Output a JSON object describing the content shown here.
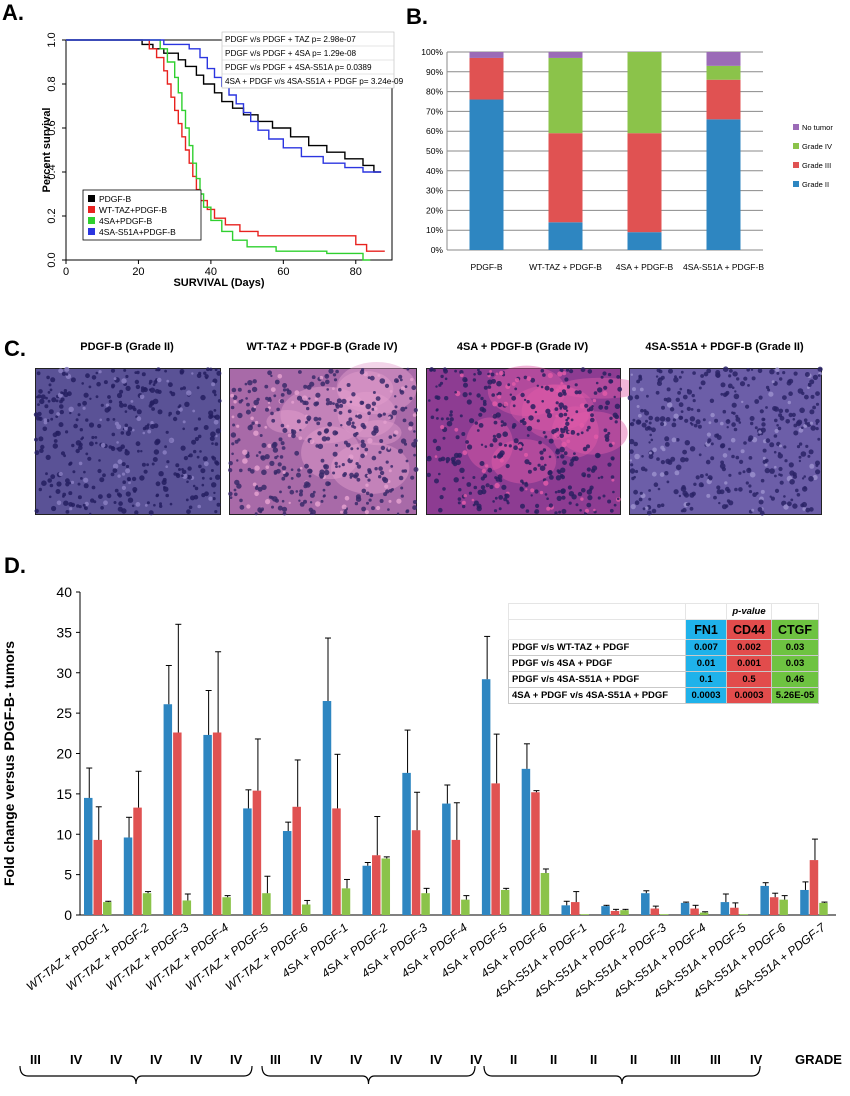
{
  "panels": {
    "a": "A.",
    "b": "B.",
    "c": "C.",
    "d": "D."
  },
  "panel_a": {
    "chart_data": {
      "type": "line",
      "xlabel": "SURVIVAL (Days)",
      "ylabel": "Percent survival",
      "xlim": [
        0,
        90
      ],
      "ylim": [
        0,
        1.0
      ],
      "xticks": [
        0,
        20,
        40,
        60,
        80
      ],
      "yticks": [
        0.0,
        0.2,
        0.4,
        0.6,
        0.8,
        1.0
      ],
      "legend_placement": "lower-left",
      "series": [
        {
          "name": "PDGF-B",
          "color": "#000000",
          "points": [
            [
              0,
              1.0
            ],
            [
              21,
              1.0
            ],
            [
              21,
              0.98
            ],
            [
              24,
              0.98
            ],
            [
              24,
              0.96
            ],
            [
              27,
              0.96
            ],
            [
              27,
              0.94
            ],
            [
              31,
              0.94
            ],
            [
              31,
              0.91
            ],
            [
              33,
              0.91
            ],
            [
              33,
              0.88
            ],
            [
              36,
              0.88
            ],
            [
              36,
              0.84
            ],
            [
              38,
              0.84
            ],
            [
              38,
              0.8
            ],
            [
              41,
              0.8
            ],
            [
              41,
              0.76
            ],
            [
              43,
              0.76
            ],
            [
              43,
              0.72
            ],
            [
              46,
              0.72
            ],
            [
              46,
              0.69
            ],
            [
              49,
              0.69
            ],
            [
              49,
              0.66
            ],
            [
              53,
              0.66
            ],
            [
              53,
              0.63
            ],
            [
              57,
              0.63
            ],
            [
              57,
              0.6
            ],
            [
              62,
              0.6
            ],
            [
              62,
              0.56
            ],
            [
              67,
              0.56
            ],
            [
              67,
              0.52
            ],
            [
              72,
              0.52
            ],
            [
              72,
              0.49
            ],
            [
              77,
              0.49
            ],
            [
              77,
              0.46
            ],
            [
              82,
              0.46
            ],
            [
              82,
              0.43
            ],
            [
              85,
              0.43
            ],
            [
              85,
              0.4
            ],
            [
              87,
              0.4
            ]
          ]
        },
        {
          "name": "WT-TAZ+PDGF-B",
          "color": "#e8221f",
          "points": [
            [
              0,
              1.0
            ],
            [
              23,
              1.0
            ],
            [
              23,
              0.96
            ],
            [
              25,
              0.96
            ],
            [
              25,
              0.92
            ],
            [
              27,
              0.92
            ],
            [
              27,
              0.86
            ],
            [
              28,
              0.86
            ],
            [
              28,
              0.8
            ],
            [
              29,
              0.8
            ],
            [
              29,
              0.74
            ],
            [
              30,
              0.74
            ],
            [
              30,
              0.68
            ],
            [
              31,
              0.68
            ],
            [
              31,
              0.62
            ],
            [
              32,
              0.62
            ],
            [
              32,
              0.56
            ],
            [
              33,
              0.56
            ],
            [
              33,
              0.5
            ],
            [
              34,
              0.5
            ],
            [
              34,
              0.44
            ],
            [
              35,
              0.44
            ],
            [
              35,
              0.38
            ],
            [
              36,
              0.38
            ],
            [
              36,
              0.32
            ],
            [
              37,
              0.32
            ],
            [
              37,
              0.27
            ],
            [
              39,
              0.27
            ],
            [
              39,
              0.23
            ],
            [
              41,
              0.23
            ],
            [
              41,
              0.19
            ],
            [
              44,
              0.19
            ],
            [
              44,
              0.16
            ],
            [
              48,
              0.16
            ],
            [
              48,
              0.13
            ],
            [
              53,
              0.13
            ],
            [
              53,
              0.11
            ],
            [
              80,
              0.11
            ],
            [
              80,
              0.07
            ],
            [
              83,
              0.07
            ],
            [
              83,
              0.04
            ],
            [
              88,
              0.04
            ]
          ]
        },
        {
          "name": "4SA+PDGF-B",
          "color": "#2fd02f",
          "points": [
            [
              0,
              1.0
            ],
            [
              26,
              1.0
            ],
            [
              26,
              0.96
            ],
            [
              28,
              0.96
            ],
            [
              28,
              0.9
            ],
            [
              30,
              0.9
            ],
            [
              30,
              0.83
            ],
            [
              31,
              0.83
            ],
            [
              31,
              0.76
            ],
            [
              32,
              0.76
            ],
            [
              32,
              0.68
            ],
            [
              33,
              0.68
            ],
            [
              33,
              0.6
            ],
            [
              34,
              0.6
            ],
            [
              34,
              0.52
            ],
            [
              35,
              0.52
            ],
            [
              35,
              0.44
            ],
            [
              36,
              0.44
            ],
            [
              36,
              0.37
            ],
            [
              37,
              0.37
            ],
            [
              37,
              0.3
            ],
            [
              38,
              0.3
            ],
            [
              38,
              0.24
            ],
            [
              40,
              0.24
            ],
            [
              40,
              0.18
            ],
            [
              43,
              0.18
            ],
            [
              43,
              0.13
            ],
            [
              46,
              0.13
            ],
            [
              46,
              0.09
            ],
            [
              50,
              0.09
            ],
            [
              50,
              0.06
            ],
            [
              58,
              0.06
            ],
            [
              58,
              0.04
            ],
            [
              72,
              0.04
            ],
            [
              72,
              0.03
            ],
            [
              82,
              0.03
            ],
            [
              82,
              0.0
            ],
            [
              84,
              0.0
            ]
          ]
        },
        {
          "name": "4SA-S51A+PDGF-B",
          "color": "#2b35e0",
          "points": [
            [
              0,
              1.0
            ],
            [
              27,
              1.0
            ],
            [
              27,
              0.98
            ],
            [
              34,
              0.98
            ],
            [
              34,
              0.96
            ],
            [
              37,
              0.96
            ],
            [
              37,
              0.92
            ],
            [
              39,
              0.92
            ],
            [
              39,
              0.87
            ],
            [
              41,
              0.87
            ],
            [
              41,
              0.83
            ],
            [
              43,
              0.83
            ],
            [
              43,
              0.79
            ],
            [
              45,
              0.79
            ],
            [
              45,
              0.75
            ],
            [
              47,
              0.75
            ],
            [
              47,
              0.71
            ],
            [
              49,
              0.71
            ],
            [
              49,
              0.67
            ],
            [
              51,
              0.67
            ],
            [
              51,
              0.63
            ],
            [
              53,
              0.63
            ],
            [
              53,
              0.59
            ],
            [
              56,
              0.59
            ],
            [
              56,
              0.55
            ],
            [
              60,
              0.55
            ],
            [
              60,
              0.51
            ],
            [
              65,
              0.51
            ],
            [
              65,
              0.47
            ],
            [
              71,
              0.47
            ],
            [
              71,
              0.44
            ],
            [
              77,
              0.44
            ],
            [
              77,
              0.42
            ],
            [
              82,
              0.42
            ],
            [
              82,
              0.4
            ],
            [
              87,
              0.4
            ]
          ]
        }
      ],
      "annotations": [
        "PDGF v/s PDGF + TAZ  p= 2.98e-07",
        "PDGF v/s PDGF + 4SA  p= 1.29e-08",
        "PDGF v/s PDGF + 4SA-S51A  p= 0.0389",
        "4SA + PDGF v/s 4SA-S51A + PDGF p= 3.24e-09"
      ]
    }
  },
  "panel_b": {
    "chart_data": {
      "type": "bar",
      "stacked": true,
      "categories": [
        "PDGF-B",
        "WT-TAZ + PDGF-B",
        "4SA + PDGF-B",
        "4SA-S51A + PDGF-B"
      ],
      "ylim": [
        0,
        100
      ],
      "yticks": [
        "0%",
        "10%",
        "20%",
        "30%",
        "40%",
        "50%",
        "60%",
        "70%",
        "80%",
        "90%",
        "100%"
      ],
      "legend_placement": "right",
      "series": [
        {
          "name": "Grade II",
          "color": "#2e86c1",
          "values": [
            76,
            14,
            9,
            66
          ]
        },
        {
          "name": "Grade III",
          "color": "#e05252",
          "values": [
            21,
            45,
            50,
            20
          ]
        },
        {
          "name": "Grade IV",
          "color": "#8bc34a",
          "values": [
            0,
            38,
            41,
            7
          ]
        },
        {
          "name": "No tumor",
          "color": "#9b6bb7",
          "values": [
            3,
            3,
            0,
            7
          ]
        }
      ],
      "legend_order": [
        "No tumor",
        "Grade IV",
        "Grade III",
        "Grade II"
      ]
    }
  },
  "panel_c": {
    "images": [
      {
        "title": "PDGF-B (Grade II)",
        "bg": "#5a5296",
        "cell": "#241f60",
        "accent": "#8a7fc2"
      },
      {
        "title": "WT-TAZ + PDGF-B (Grade IV)",
        "bg": "#a86aa8",
        "cell": "#3a2a6a",
        "accent": "#e4a0cf"
      },
      {
        "title": "4SA + PDGF-B (Grade IV)",
        "bg": "#8d3c92",
        "cell": "#2a2060",
        "accent": "#e05aa8"
      },
      {
        "title": "4SA-S51A + PDGF-B (Grade II)",
        "bg": "#6c5ea8",
        "cell": "#2a2366",
        "accent": "#9a8fcc"
      }
    ]
  },
  "panel_d": {
    "chart_data": {
      "type": "bar",
      "ylabel": "Fold change versus PDGF-B- tumors",
      "ylim": [
        0,
        40
      ],
      "yticks": [
        0,
        5,
        10,
        15,
        20,
        25,
        30,
        35,
        40
      ],
      "categories": [
        "WT-TAZ + PDGF-1",
        "WT-TAZ + PDGF-2",
        "WT-TAZ + PDGF-3",
        "WT-TAZ + PDGF-4",
        "WT-TAZ + PDGF-5",
        "WT-TAZ + PDGF-6",
        "4SA + PDGF-1",
        "4SA + PDGF-2",
        "4SA + PDGF-3",
        "4SA + PDGF-4",
        "4SA + PDGF-5",
        "4SA + PDGF-6",
        "4SA-S51A + PDGF-1",
        "4SA-S51A + PDGF-2",
        "4SA-S51A + PDGF-3",
        "4SA-S51A + PDGF-4",
        "4SA-S51A + PDGF-5",
        "4SA-S51A + PDGF-6",
        "4SA-S51A + PDGF-7"
      ],
      "series": [
        {
          "name": "FN1",
          "color": "#2e86c1",
          "values": [
            14.5,
            9.6,
            26.1,
            22.3,
            13.2,
            10.4,
            26.5,
            6.1,
            17.6,
            13.8,
            29.2,
            18.1,
            1.2,
            1.1,
            2.7,
            1.5,
            1.6,
            3.6,
            3.1
          ],
          "errors": [
            3.7,
            2.5,
            4.8,
            5.5,
            2.3,
            1.1,
            7.8,
            0.4,
            5.3,
            2.3,
            5.3,
            3.1,
            0.5,
            0.1,
            0.3,
            0.1,
            1.0,
            0.4,
            1.0
          ]
        },
        {
          "name": "CD44",
          "color": "#e05252",
          "values": [
            9.3,
            13.3,
            22.6,
            22.6,
            15.4,
            13.4,
            13.2,
            7.4,
            10.5,
            9.3,
            16.3,
            15.2,
            1.6,
            0.5,
            0.8,
            0.8,
            0.9,
            2.2,
            6.8
          ],
          "errors": [
            4.1,
            4.5,
            13.4,
            10.0,
            6.4,
            5.8,
            6.7,
            4.8,
            4.7,
            4.6,
            6.1,
            0.2,
            1.3,
            0.2,
            0.3,
            0.4,
            0.6,
            0.5,
            2.6
          ]
        },
        {
          "name": "CTGF",
          "color": "#8bc34a",
          "values": [
            1.6,
            2.7,
            1.8,
            2.2,
            2.7,
            1.3,
            3.3,
            7.0,
            2.7,
            1.9,
            3.1,
            5.2,
            0.1,
            0.6,
            0.1,
            0.3,
            0.1,
            1.9,
            1.5
          ],
          "errors": [
            0.1,
            0.2,
            0.8,
            0.2,
            2.1,
            0.5,
            1.1,
            0.2,
            0.6,
            0.5,
            0.2,
            0.5,
            0.0,
            0.1,
            0.0,
            0.1,
            0.0,
            0.5,
            0.1
          ]
        }
      ],
      "grades": [
        "III",
        "IV",
        "IV",
        "IV",
        "IV",
        "IV",
        "III",
        "IV",
        "IV",
        "IV",
        "IV",
        "IV",
        "II",
        "II",
        "II",
        "II",
        "III",
        "III",
        "IV"
      ],
      "grade_label": "GRADE"
    },
    "table": {
      "header_label": "p-value",
      "genes": [
        {
          "name": "FN1",
          "color": "#1fb2ea"
        },
        {
          "name": "CD44",
          "color": "#e24c4c"
        },
        {
          "name": "CTGF",
          "color": "#6ec341"
        }
      ],
      "rows": [
        {
          "label": "PDGF v/s WT-TAZ + PDGF",
          "values": [
            "0.007",
            "0.002",
            "0.03"
          ]
        },
        {
          "label": "PDGF v/s 4SA + PDGF",
          "values": [
            "0.01",
            "0.001",
            "0.03"
          ]
        },
        {
          "label": "PDGF v/s 4SA-S51A + PDGF",
          "values": [
            "0.1",
            "0.5",
            "0.46"
          ]
        },
        {
          "label": "4SA + PDGF v/s 4SA-S51A + PDGF",
          "values": [
            "0.0003",
            "0.0003",
            "5.26E-05"
          ]
        }
      ]
    }
  }
}
